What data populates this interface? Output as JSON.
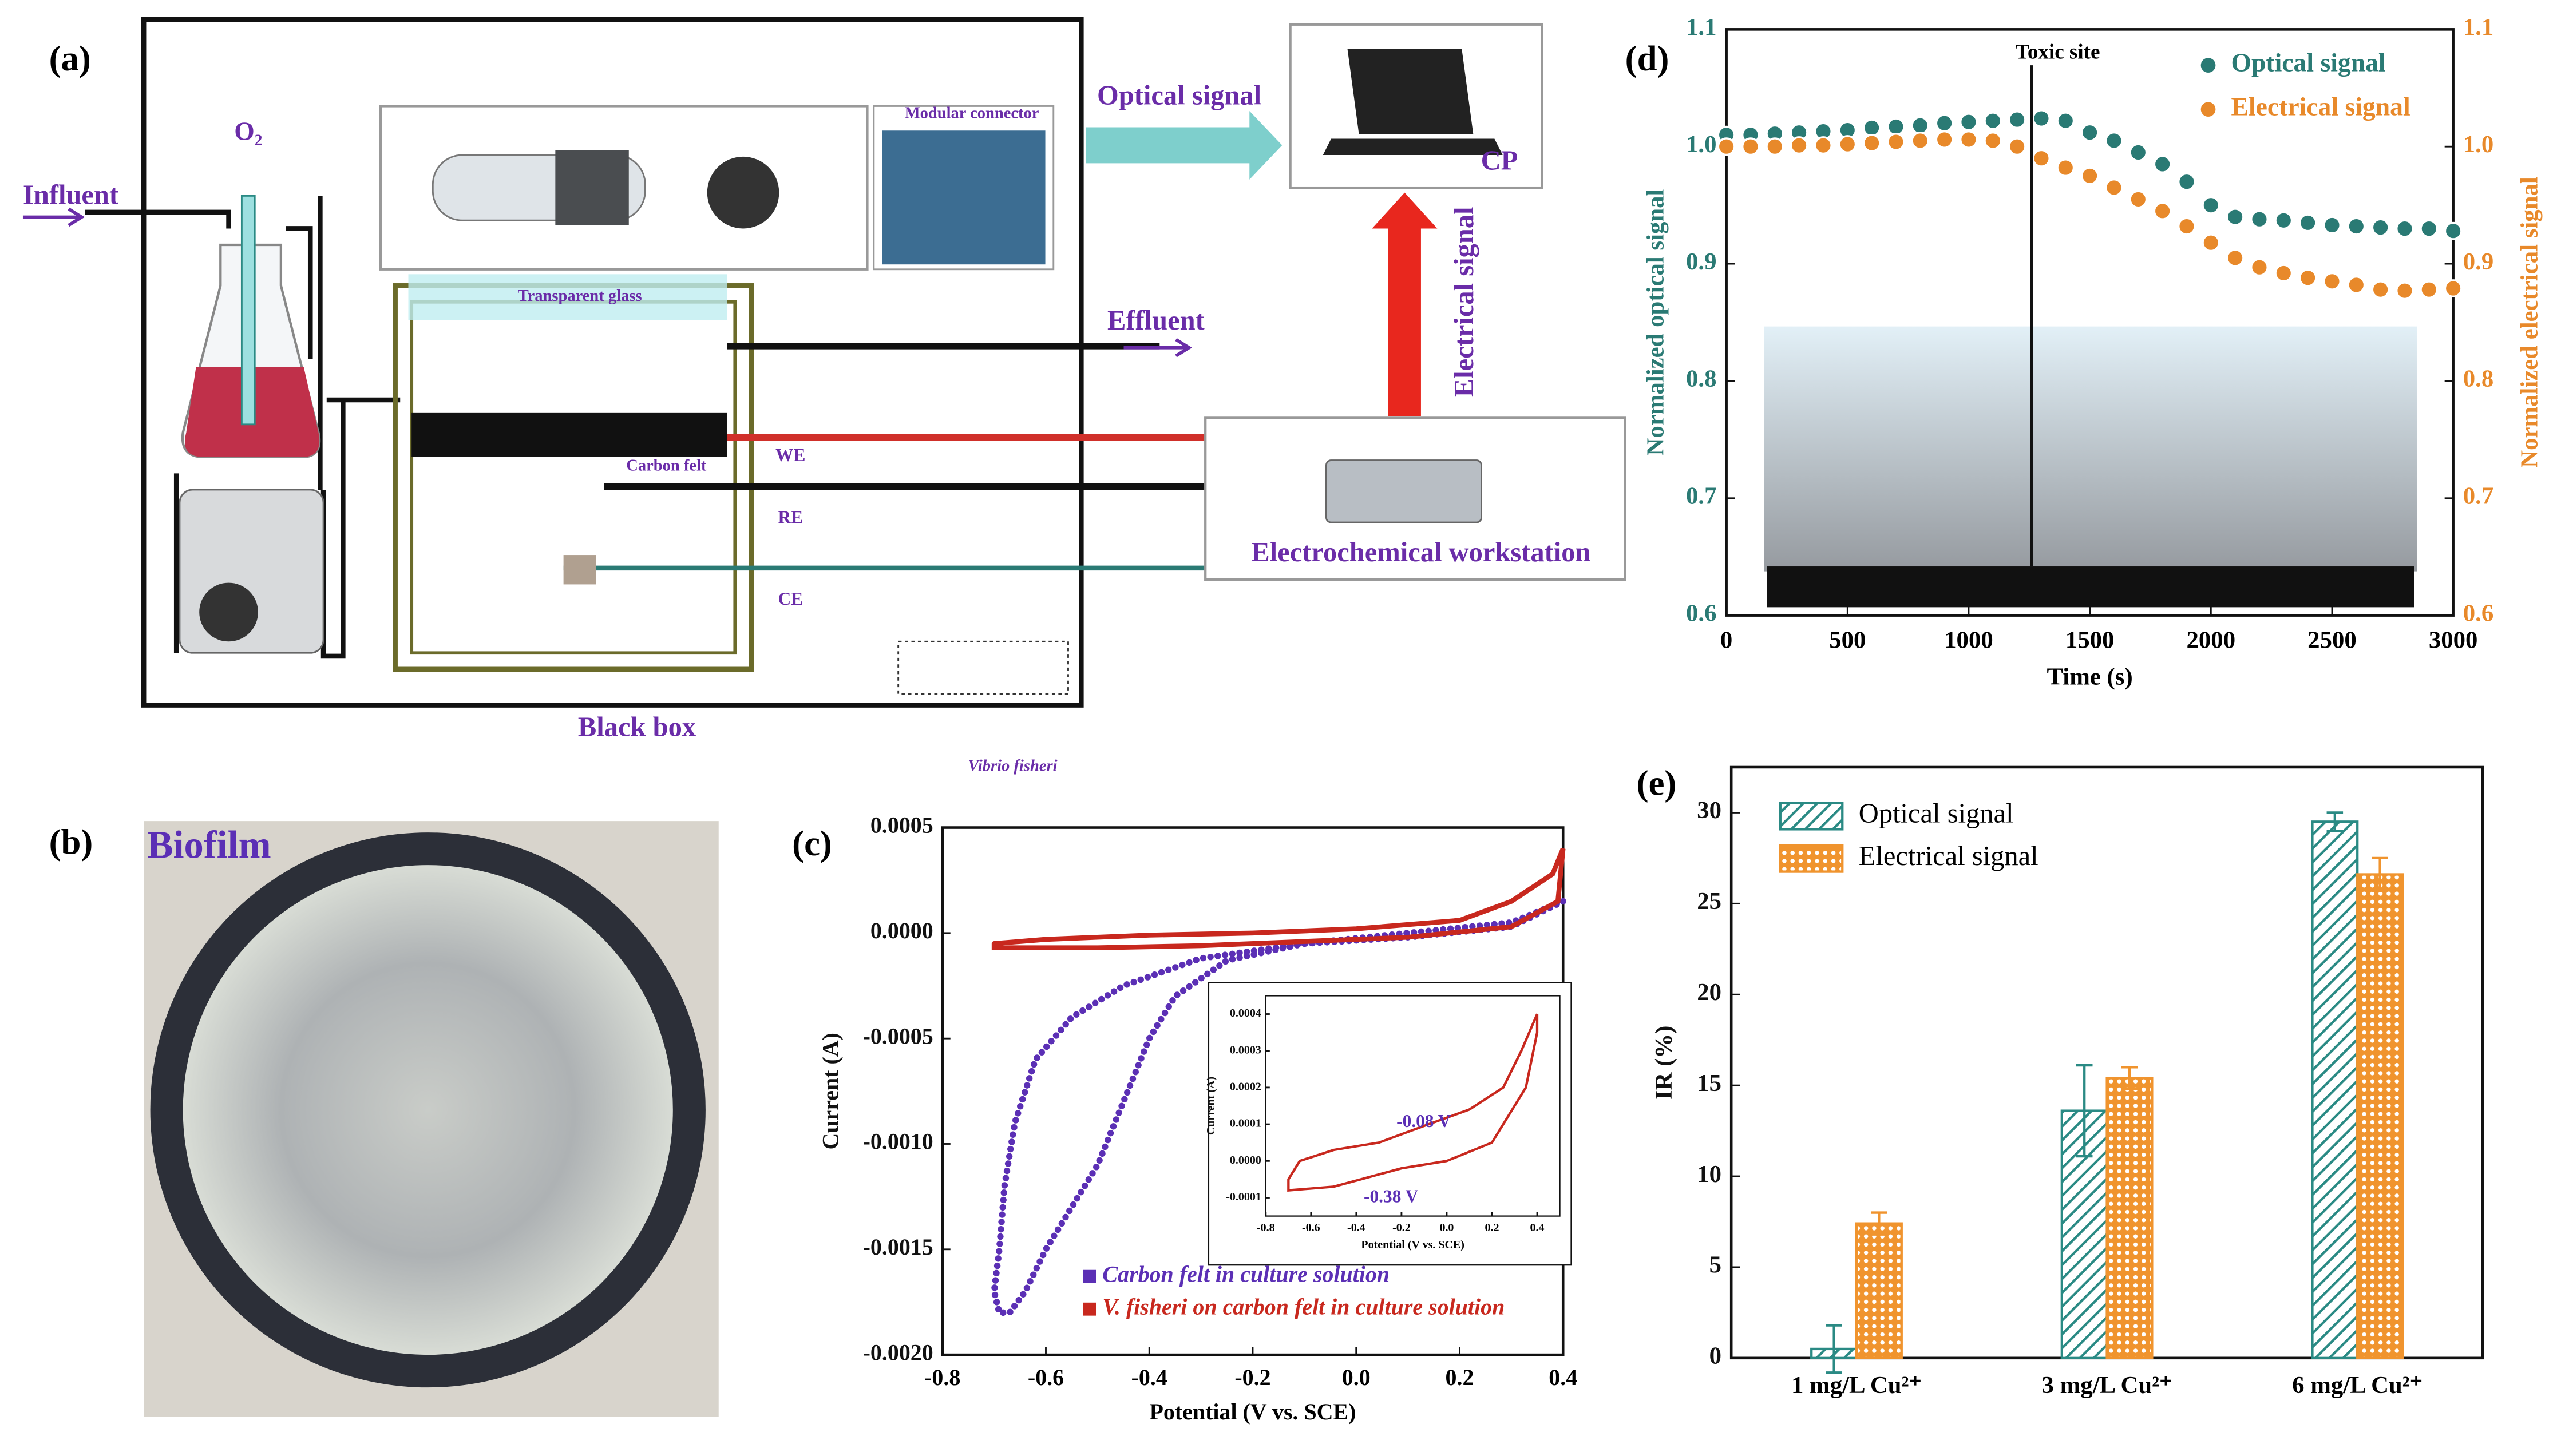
{
  "diagram": {
    "label": "(a)",
    "influent": "Influent",
    "oxygen": "O₂",
    "optical_signal": "Optical signal",
    "computer": "CP",
    "connector": "Modular connector",
    "glass": "Transparent glass",
    "effluent": "Effluent",
    "electrical_signal": "Electrical signal",
    "we": "WE",
    "felt": "Carbon felt",
    "re": "RE",
    "ce": "CE",
    "workstation": "Electrochemical workstation",
    "box": "Black box",
    "organism": "Vibrio fisheri"
  },
  "photo": {
    "label": "(b)",
    "caption": "Biofilm"
  },
  "chart_data": [
    {
      "type": "line",
      "label": "(d)",
      "xlabel": "Time (s)",
      "ylabel": "Normalized optical signal",
      "y2label": "Normalized electrical signal",
      "x": [
        0,
        100,
        200,
        300,
        400,
        500,
        600,
        700,
        800,
        900,
        1000,
        1100,
        1200,
        1300,
        1400,
        1500,
        1600,
        1700,
        1800,
        1900,
        2000,
        2100,
        2200,
        2300,
        2400,
        2500,
        2600,
        2700,
        2800,
        2900,
        3000
      ],
      "series": [
        {
          "name": "Optical signal",
          "color": "#2a7a74",
          "values": [
            1.01,
            1.01,
            1.011,
            1.012,
            1.013,
            1.014,
            1.016,
            1.017,
            1.018,
            1.02,
            1.021,
            1.022,
            1.023,
            1.024,
            1.022,
            1.012,
            1.005,
            0.995,
            0.985,
            0.97,
            0.95,
            0.94,
            0.938,
            0.937,
            0.935,
            0.933,
            0.932,
            0.931,
            0.93,
            0.93,
            0.928
          ]
        },
        {
          "name": "Electrical signal",
          "color": "#e8892a",
          "axis": "y2",
          "values": [
            1.0,
            1.0,
            1.0,
            1.001,
            1.001,
            1.002,
            1.003,
            1.004,
            1.005,
            1.006,
            1.006,
            1.005,
            1.0,
            0.99,
            0.982,
            0.975,
            0.965,
            0.955,
            0.945,
            0.932,
            0.918,
            0.905,
            0.897,
            0.892,
            0.888,
            0.885,
            0.882,
            0.878,
            0.877,
            0.878,
            0.879
          ]
        }
      ],
      "xlim": [
        0,
        3000
      ],
      "xticks": [
        0,
        500,
        1000,
        1500,
        2000,
        2500,
        3000
      ],
      "ylim": [
        0.6,
        1.1
      ],
      "yticks": [
        0.6,
        0.7,
        0.8,
        0.9,
        {
          "value": 1,
          "label": "1.0"
        },
        1.1
      ],
      "y2lim": [
        0.6,
        1.1
      ],
      "y2ticks": [
        0.6,
        0.7,
        0.8,
        0.9,
        {
          "value": 1,
          "label": "1.0"
        },
        1.1
      ],
      "toxic_site": {
        "label": "Toxic site",
        "x": 1260
      },
      "legend": "upper right"
    },
    {
      "type": "line",
      "label": "(c)",
      "xlabel": "Potential (V vs. SCE)",
      "ylabel": "Current (A)",
      "series": [
        {
          "name": "Carbon felt in culture solution",
          "color": "#5b2fb5",
          "style": "dots",
          "x": [
            0.4,
            0.3,
            0.1,
            -0.1,
            -0.3,
            -0.45,
            -0.55,
            -0.62,
            -0.66,
            -0.68,
            -0.69,
            -0.7,
            -0.69,
            -0.67,
            -0.64,
            -0.6,
            -0.55,
            -0.5,
            -0.45,
            -0.4,
            -0.35,
            -0.25,
            -0.1,
            0.1,
            0.3,
            0.4
          ],
          "values": [
            0.00015,
            3e-05,
            -2e-05,
            -5e-05,
            -0.00012,
            -0.00025,
            -0.0004,
            -0.0006,
            -0.0009,
            -0.0012,
            -0.0015,
            -0.0017,
            -0.0018,
            -0.0018,
            -0.0017,
            -0.0015,
            -0.0013,
            -0.0011,
            -0.0008,
            -0.0005,
            -0.0003,
            -0.00013,
            -5e-05,
            0,
            5e-05,
            0.00015
          ]
        },
        {
          "name": "V. fisheri on carbon felt in culture solution",
          "color": "#c8281e",
          "style": "solid",
          "x": [
            -0.7,
            -0.6,
            -0.4,
            -0.2,
            0,
            0.2,
            0.3,
            0.38,
            0.4,
            0.39,
            0.3,
            0.1,
            -0.1,
            -0.3,
            -0.5,
            -0.7,
            -0.7
          ],
          "values": [
            -5e-05,
            -3e-05,
            -1e-05,
            0,
            2e-05,
            6e-05,
            0.00015,
            0.00028,
            0.0004,
            0.00015,
            3e-05,
            -2e-05,
            -4e-05,
            -6e-05,
            -7e-05,
            -7e-05,
            -5e-05
          ]
        }
      ],
      "xlim": [
        -0.8,
        0.4
      ],
      "xticks": [
        -0.8,
        -0.6,
        -0.4,
        -0.2,
        {
          "value": 0,
          "label": "0.0"
        },
        0.2,
        0.4
      ],
      "ylim": [
        -0.002,
        0.0005
      ],
      "yticks": [
        {
          "value": -0.002,
          "label": "-0.0020"
        },
        -0.0015,
        {
          "value": -0.001,
          "label": "-0.0010"
        },
        -0.0005,
        {
          "value": 0,
          "label": "0.0000"
        },
        0.0005
      ],
      "legend": "lower left"
    },
    {
      "type": "line",
      "xlabel": "Potential (V vs. SCE)",
      "ylabel": "Current (A)",
      "series": [
        {
          "color": "#c8281e",
          "style": "solid",
          "x": [
            -0.7,
            -0.65,
            -0.5,
            -0.3,
            -0.08,
            0.1,
            0.25,
            0.33,
            0.4,
            0.4,
            0.35,
            0.2,
            0,
            -0.2,
            -0.38,
            -0.5,
            -0.7,
            -0.7
          ],
          "values": [
            -5e-05,
            0,
            3e-05,
            5e-05,
            0.0001,
            0.00014,
            0.0002,
            0.0003,
            0.0004,
            0.00035,
            0.0002,
            5e-05,
            0,
            -2e-05,
            -5e-05,
            -7e-05,
            -8e-05,
            -5e-05
          ]
        }
      ],
      "xlim": [
        -0.8,
        0.5
      ],
      "xticks": [
        -0.8,
        -0.6,
        -0.4,
        -0.2,
        {
          "value": 0,
          "label": "0.0"
        },
        0.2,
        0.4
      ],
      "ylim": [
        -0.00015,
        0.00045
      ],
      "yticks": [
        -0.0001,
        {
          "value": 0,
          "label": "0.0000"
        },
        0.0001,
        0.0002,
        0.0003,
        0.0004
      ],
      "annotations": [
        "-0.08 V",
        "-0.38 V"
      ]
    },
    {
      "type": "bar",
      "label": "(e)",
      "ylabel": "IR (%)",
      "categories": [
        "1 mg/L Cu²⁺",
        "3 mg/L Cu²⁺",
        "6 mg/L Cu²⁺"
      ],
      "series": [
        {
          "name": "Optical signal",
          "color": "#2a8a84",
          "values": [
            0.5,
            13.6,
            29.5
          ],
          "errors": [
            1.3,
            2.5,
            0.5
          ]
        },
        {
          "name": "Electrical signal",
          "color": "#f0942e",
          "values": [
            7.4,
            15.4,
            26.6
          ],
          "errors": [
            0.6,
            0.6,
            0.9
          ]
        }
      ],
      "ylim": [
        0,
        32.5
      ],
      "yticks": [
        0,
        5,
        10,
        15,
        20,
        25,
        30
      ],
      "legend": "upper left"
    }
  ]
}
